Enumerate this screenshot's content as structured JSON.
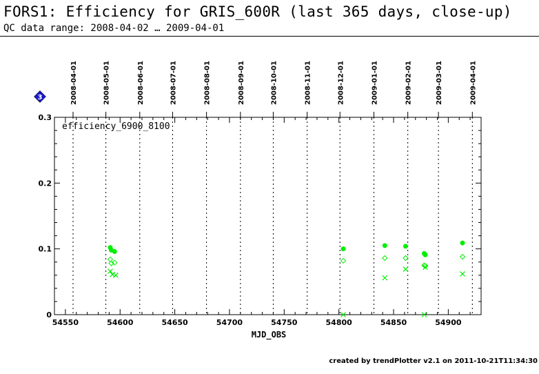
{
  "header": {
    "title": "FORS1: Efficiency for GRIS_600R (last 365 days, close-up)",
    "subtitle": "QC data range: 2008-04-02 … 2009-04-01"
  },
  "footer": {
    "text": "created by trendPlotter v2.1 on 2011-10-21T11:34:30"
  },
  "marker": {
    "symbol": "3",
    "color": "#1a1acc"
  },
  "chart_data": {
    "type": "scatter",
    "panel_label": "efficiency_6900_8100",
    "xlabel": "MJD_OBS",
    "ylabel": "",
    "xlim": [
      54540,
      54930
    ],
    "ylim": [
      0,
      0.3
    ],
    "x_ticks": [
      54550,
      54600,
      54650,
      54700,
      54750,
      54800,
      54850,
      54900
    ],
    "y_ticks": [
      0,
      0.1,
      0.2,
      0.3
    ],
    "y_tick_labels": [
      "0",
      "0.1",
      "0.2",
      "0.3"
    ],
    "date_lines": [
      {
        "label": "2008-04-01",
        "mjd": 54557
      },
      {
        "label": "2008-05-01",
        "mjd": 54587
      },
      {
        "label": "2008-06-01",
        "mjd": 54618
      },
      {
        "label": "2008-07-01",
        "mjd": 54648
      },
      {
        "label": "2008-08-01",
        "mjd": 54679
      },
      {
        "label": "2008-09-01",
        "mjd": 54710
      },
      {
        "label": "2008-10-01",
        "mjd": 54740
      },
      {
        "label": "2008-11-01",
        "mjd": 54771
      },
      {
        "label": "2008-12-01",
        "mjd": 54801
      },
      {
        "label": "2009-01-01",
        "mjd": 54832
      },
      {
        "label": "2009-02-01",
        "mjd": 54863
      },
      {
        "label": "2009-03-01",
        "mjd": 54891
      },
      {
        "label": "2009-04-01",
        "mjd": 54922
      }
    ],
    "color": "#00ee00",
    "series": [
      {
        "marker": "filled-circle",
        "points": [
          [
            54591,
            0.102
          ],
          [
            54592,
            0.098
          ],
          [
            54595,
            0.096
          ],
          [
            54804,
            0.1
          ],
          [
            54842,
            0.105
          ],
          [
            54861,
            0.104
          ],
          [
            54878,
            0.093
          ],
          [
            54879,
            0.091
          ],
          [
            54913,
            0.109
          ]
        ]
      },
      {
        "marker": "open-diamond",
        "points": [
          [
            54591,
            0.084
          ],
          [
            54592,
            0.078
          ],
          [
            54595,
            0.079
          ],
          [
            54804,
            0.082
          ],
          [
            54842,
            0.086
          ],
          [
            54861,
            0.086
          ],
          [
            54878,
            0.075
          ],
          [
            54879,
            0.074
          ],
          [
            54913,
            0.088
          ]
        ]
      },
      {
        "marker": "cross",
        "points": [
          [
            54591,
            0.066
          ],
          [
            54593,
            0.061
          ],
          [
            54596,
            0.06
          ],
          [
            54804,
            0.0
          ],
          [
            54842,
            0.056
          ],
          [
            54861,
            0.069
          ],
          [
            54878,
            0.0
          ],
          [
            54879,
            0.072
          ],
          [
            54913,
            0.062
          ]
        ]
      }
    ]
  }
}
